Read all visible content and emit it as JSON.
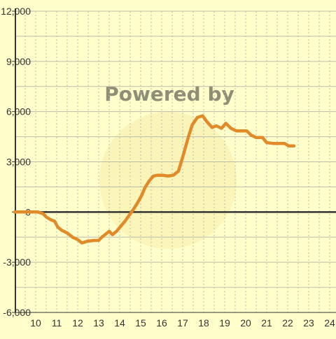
{
  "chart_data": {
    "type": "line",
    "title": "",
    "xlabel": "",
    "ylabel": "",
    "xlim": [
      9,
      24
    ],
    "ylim": [
      -6000,
      12000
    ],
    "x_ticks": [
      "10",
      "11",
      "12",
      "13",
      "14",
      "15",
      "16",
      "17",
      "18",
      "19",
      "20",
      "21",
      "22",
      "23",
      "24"
    ],
    "y_ticks": [
      "12,000",
      "9,000",
      "6,000",
      "3,000",
      "0",
      "-3,000",
      "-6,000"
    ],
    "x_grid": true,
    "y_grid": true,
    "watermark": "Powered by",
    "colors": {
      "line": "#e08a2a",
      "background": "#ffffcc",
      "grid": "#bbbbaa",
      "axis": "#333333",
      "watermark": "#f3e7a8"
    },
    "series": [
      {
        "values": [
          [
            9,
            0
          ],
          [
            10.1,
            0
          ],
          [
            10.35,
            -100
          ],
          [
            10.5,
            -300
          ],
          [
            10.7,
            -450
          ],
          [
            10.9,
            -550
          ],
          [
            11.05,
            -900
          ],
          [
            11.25,
            -1100
          ],
          [
            11.5,
            -1250
          ],
          [
            11.75,
            -1500
          ],
          [
            12.0,
            -1650
          ],
          [
            12.2,
            -1850
          ],
          [
            12.45,
            -1750
          ],
          [
            12.75,
            -1700
          ],
          [
            13.0,
            -1700
          ],
          [
            13.15,
            -1500
          ],
          [
            13.3,
            -1350
          ],
          [
            13.5,
            -1150
          ],
          [
            13.65,
            -1350
          ],
          [
            13.85,
            -1150
          ],
          [
            14.05,
            -850
          ],
          [
            14.25,
            -550
          ],
          [
            14.45,
            -200
          ],
          [
            14.65,
            150
          ],
          [
            14.85,
            550
          ],
          [
            15.05,
            1000
          ],
          [
            15.2,
            1450
          ],
          [
            15.4,
            1850
          ],
          [
            15.6,
            2150
          ],
          [
            15.8,
            2200
          ],
          [
            16.05,
            2200
          ],
          [
            16.3,
            2150
          ],
          [
            16.55,
            2200
          ],
          [
            16.8,
            2450
          ],
          [
            17.05,
            3500
          ],
          [
            17.25,
            4400
          ],
          [
            17.45,
            5200
          ],
          [
            17.7,
            5650
          ],
          [
            17.95,
            5750
          ],
          [
            18.15,
            5400
          ],
          [
            18.4,
            5050
          ],
          [
            18.6,
            5150
          ],
          [
            18.85,
            5000
          ],
          [
            19.05,
            5300
          ],
          [
            19.3,
            5000
          ],
          [
            19.55,
            4850
          ],
          [
            19.85,
            4850
          ],
          [
            20.05,
            4850
          ],
          [
            20.25,
            4600
          ],
          [
            20.5,
            4450
          ],
          [
            20.8,
            4450
          ],
          [
            21.0,
            4150
          ],
          [
            21.3,
            4100
          ],
          [
            21.65,
            4100
          ],
          [
            21.85,
            4100
          ],
          [
            22.05,
            3950
          ],
          [
            22.3,
            3950
          ]
        ]
      }
    ]
  }
}
